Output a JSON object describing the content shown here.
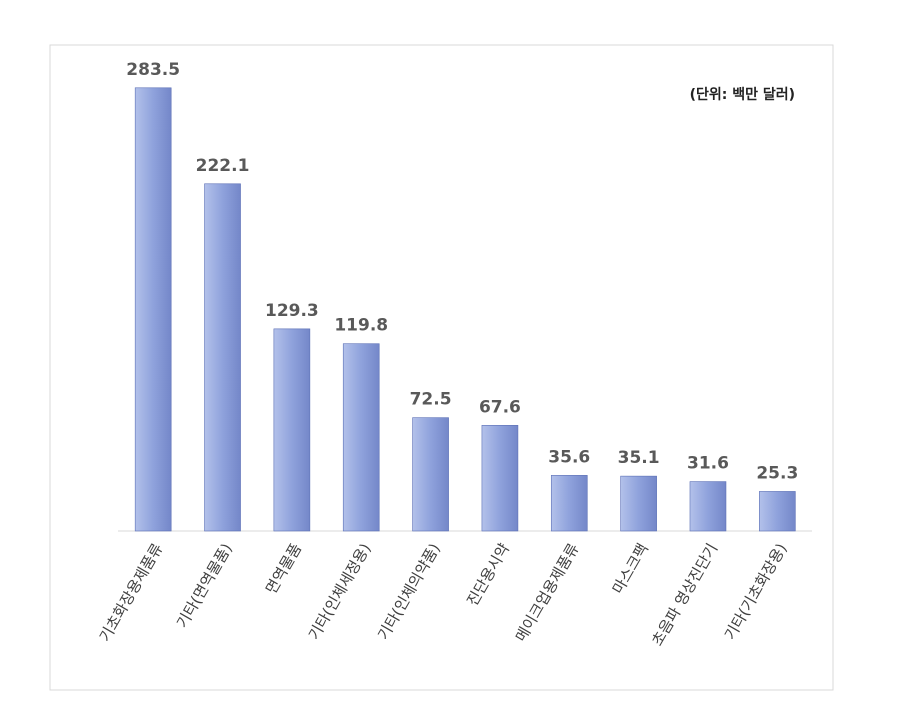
{
  "chart_data": {
    "type": "bar",
    "annotation": "(단위: 백만 달러)",
    "categories": [
      "기초화장용제품류",
      "기타(면역물품)",
      "면역물품",
      "기타(인체세정용)",
      "기타(인체의약품)",
      "진단용시약",
      "메이크업용제품류",
      "마스크팩",
      "초음파 영상진단기",
      "기타(기초화장용)"
    ],
    "values": [
      283.5,
      222.1,
      129.3,
      119.8,
      72.5,
      67.6,
      35.6,
      35.1,
      31.6,
      25.3
    ],
    "color": "#8fa2dc",
    "ylim": [
      0,
      300
    ]
  }
}
